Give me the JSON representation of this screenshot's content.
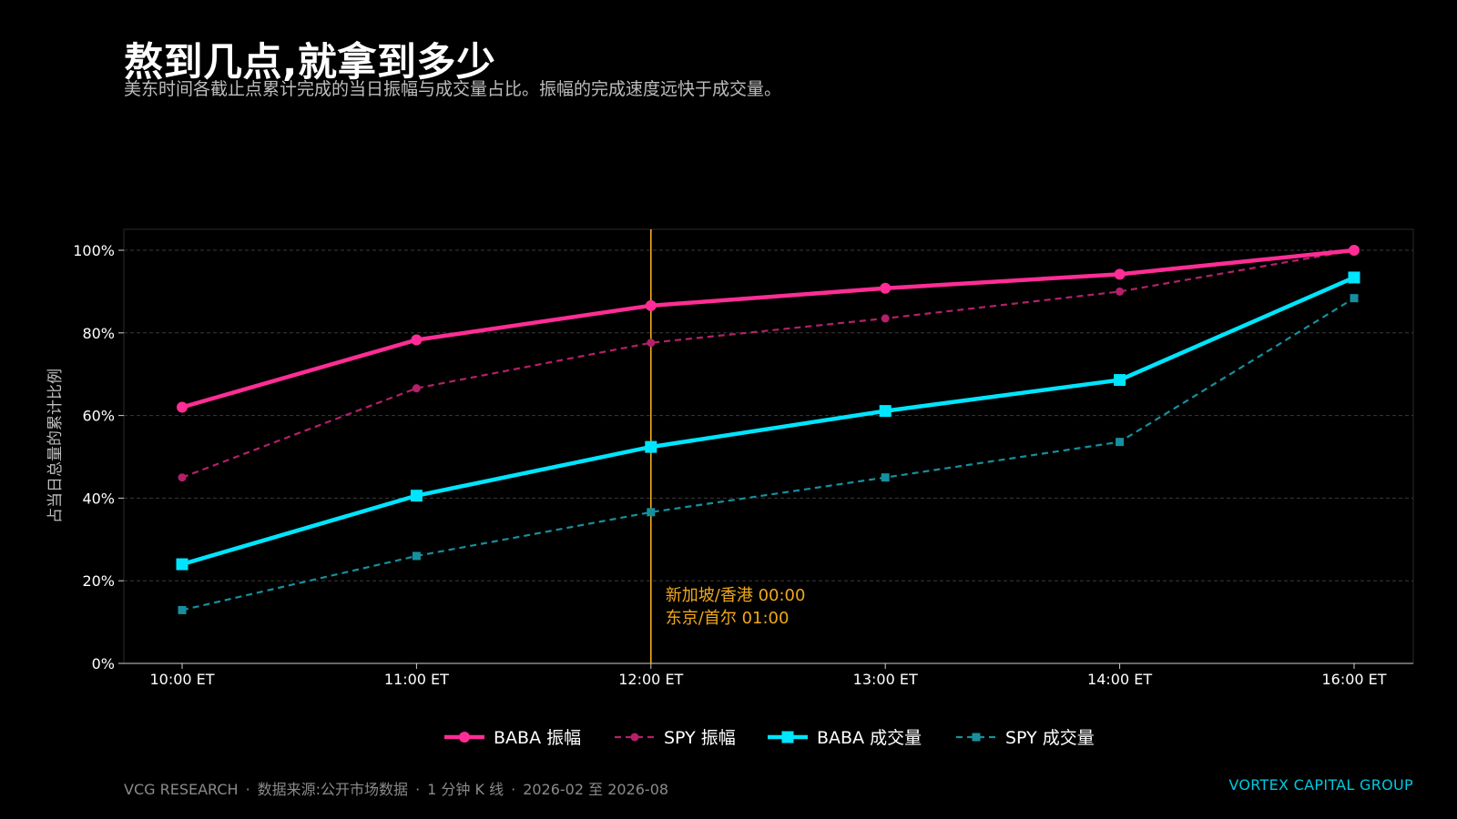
{
  "header": {
    "title": "熬到几点,就拿到多少",
    "subtitle": "美东时间各截止点累计完成的当日振幅与成交量占比。振幅的完成速度远快于成交量。"
  },
  "chart_data": {
    "type": "line",
    "categories": [
      "10:00 ET",
      "11:00 ET",
      "12:00 ET",
      "13:00 ET",
      "14:00 ET",
      "16:00 ET"
    ],
    "ylabel": "占当日总量的累计比例",
    "xlabel": "",
    "ylim": [
      0,
      105
    ],
    "yticks": [
      0,
      20,
      40,
      60,
      80,
      100
    ],
    "ytick_labels": [
      "0%",
      "20%",
      "40%",
      "60%",
      "80%",
      "100%"
    ],
    "grid": true,
    "legend_position": "bottom-center",
    "series": [
      {
        "name": "BABA 振幅",
        "values": [
          62,
          78.3,
          86.6,
          90.8,
          94.2,
          100
        ],
        "color": "#ff2d95",
        "style": "solid",
        "marker": "circle"
      },
      {
        "name": "SPY 振幅",
        "values": [
          45,
          66.6,
          77.6,
          83.5,
          90,
          100
        ],
        "color": "#b5206a",
        "style": "dashed",
        "marker": "circle"
      },
      {
        "name": "BABA 成交量",
        "values": [
          24,
          40.6,
          52.4,
          61.1,
          68.6,
          93.4
        ],
        "color": "#00e5ff",
        "style": "solid",
        "marker": "square"
      },
      {
        "name": "SPY 成交量",
        "values": [
          12.9,
          26,
          36.6,
          45,
          53.6,
          88.4
        ],
        "color": "#16909e",
        "style": "dashed",
        "marker": "square"
      }
    ],
    "annotation": {
      "category": "12:00 ET",
      "color": "#f0a81a",
      "lines": [
        "新加坡/香港 00:00",
        "东京/首尔 01:00"
      ]
    }
  },
  "footer": {
    "brand": "VCG RESEARCH",
    "source": "数据来源:公开市场数据",
    "granularity": "1 分钟 K 线",
    "period": "2026-02 至 2026-08",
    "separator": "·",
    "company": "VORTEX CAPITAL GROUP"
  }
}
